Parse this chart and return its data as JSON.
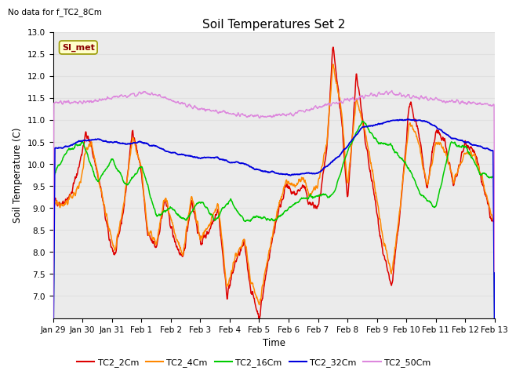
{
  "title": "Soil Temperatures Set 2",
  "subtitle": "No data for f_TC2_8Cm",
  "xlabel": "Time",
  "ylabel": "Soil Temperature (C)",
  "ylim": [
    6.5,
    13.0
  ],
  "yticks": [
    7.0,
    7.5,
    8.0,
    8.5,
    9.0,
    9.5,
    10.0,
    10.5,
    11.0,
    11.5,
    12.0,
    12.5,
    13.0
  ],
  "legend_label": "SI_met",
  "series_colors": {
    "TC2_2Cm": "#dd0000",
    "TC2_4Cm": "#ff8800",
    "TC2_16Cm": "#00cc00",
    "TC2_32Cm": "#0000dd",
    "TC2_50Cm": "#dd88dd"
  },
  "x_tick_labels": [
    "Jan 29",
    "Jan 30",
    "Jan 31",
    "Feb 1",
    "Feb 2",
    "Feb 3",
    "Feb 4",
    "Feb 5",
    "Feb 6",
    "Feb 7",
    "Feb 8",
    "Feb 9",
    "Feb 10",
    "Feb 11",
    "Feb 12",
    "Feb 13"
  ],
  "grid_color": "#e0e0e0",
  "fig_facecolor": "#ffffff",
  "plot_bg_color": "#ebebeb"
}
